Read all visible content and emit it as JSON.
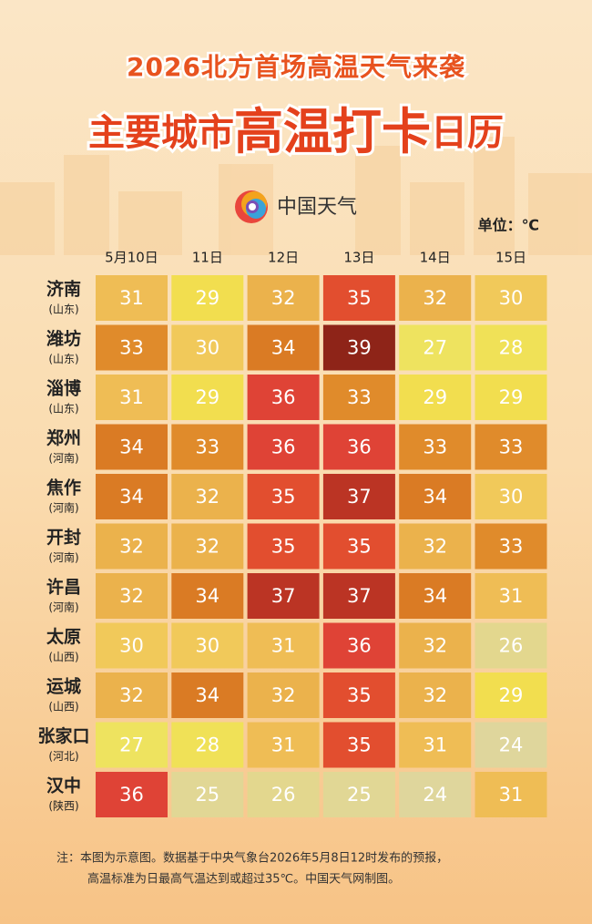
{
  "header": {
    "title": "2026北方首场高温天气来袭",
    "subtitle_parts": [
      "主要城市",
      "高温打卡",
      "日历"
    ],
    "logo": "中国天气",
    "unit": "单位：℃"
  },
  "table": {
    "columns": [
      "5月10日",
      "11日",
      "12日",
      "13日",
      "14日",
      "15日"
    ],
    "palette": [
      "#dfd69c",
      "#e1d795",
      "#e3d78e",
      "#eee35f",
      "#f0e157",
      "#f2de4f",
      "#f1c95a",
      "#efbd55",
      "#ebb24c",
      "#e08b2b",
      "#da7b24",
      "#e24e2f",
      "#df4336",
      "#bb3424",
      "#a52c1e",
      "#8e2418"
    ],
    "rows": [
      {
        "city": "济南",
        "province": "(山东)",
        "values": [
          31,
          29,
          32,
          35,
          32,
          30
        ]
      },
      {
        "city": "潍坊",
        "province": "(山东)",
        "values": [
          33,
          30,
          34,
          39,
          27,
          28
        ]
      },
      {
        "city": "淄博",
        "province": "(山东)",
        "values": [
          31,
          29,
          36,
          33,
          29,
          29
        ]
      },
      {
        "city": "郑州",
        "province": "(河南)",
        "values": [
          34,
          33,
          36,
          36,
          33,
          33
        ]
      },
      {
        "city": "焦作",
        "province": "(河南)",
        "values": [
          34,
          32,
          35,
          37,
          34,
          30
        ]
      },
      {
        "city": "开封",
        "province": "(河南)",
        "values": [
          32,
          32,
          35,
          35,
          32,
          33
        ]
      },
      {
        "city": "许昌",
        "province": "(河南)",
        "values": [
          32,
          34,
          37,
          37,
          34,
          31
        ]
      },
      {
        "city": "太原",
        "province": "(山西)",
        "values": [
          30,
          30,
          31,
          36,
          32,
          26
        ]
      },
      {
        "city": "运城",
        "province": "(山西)",
        "values": [
          32,
          34,
          32,
          35,
          32,
          29
        ]
      },
      {
        "city": "张家口",
        "province": "(河北)",
        "values": [
          27,
          28,
          31,
          35,
          31,
          24
        ]
      },
      {
        "city": "汉中",
        "province": "(陕西)",
        "values": [
          36,
          25,
          26,
          25,
          24,
          31
        ]
      }
    ]
  },
  "footer": {
    "notes": [
      "注：本图为示意图。数据基于中央气象台2026年5月8日12时发布的预报，",
      "高温标准为日最高气温达到或超过35℃。中国天气网制图。"
    ]
  }
}
